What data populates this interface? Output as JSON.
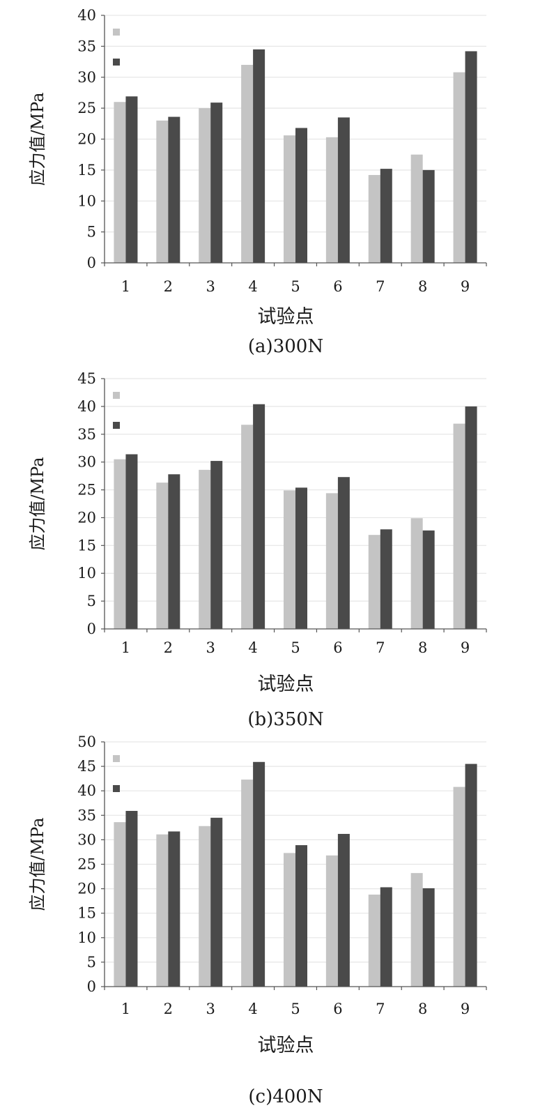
{
  "colors": {
    "series_light": "#c4c4c4",
    "series_dark": "#4a4a4a",
    "axis": "#555555",
    "grid": "#e6e6e6"
  },
  "chart_data": [
    {
      "type": "bar",
      "caption": "(a)300N",
      "xlabel": "试验点",
      "ylabel": "应力值/MPa",
      "categories": [
        "1",
        "2",
        "3",
        "4",
        "5",
        "6",
        "7",
        "8",
        "9"
      ],
      "ylim": [
        0,
        40
      ],
      "yticks": [
        0,
        5,
        10,
        15,
        20,
        25,
        30,
        35,
        40
      ],
      "legend": "top-left",
      "grid": true,
      "series": [
        {
          "values": [
            26,
            23,
            25,
            32,
            20.6,
            20.3,
            14.2,
            17.5,
            30.8
          ]
        },
        {
          "values": [
            26.9,
            23.6,
            25.9,
            34.5,
            21.8,
            23.5,
            15.2,
            15,
            34.2
          ]
        }
      ]
    },
    {
      "type": "bar",
      "caption": "(b)350N",
      "xlabel": "试验点",
      "ylabel": "应力值/MPa",
      "categories": [
        "1",
        "2",
        "3",
        "4",
        "5",
        "6",
        "7",
        "8",
        "9"
      ],
      "ylim": [
        0,
        45
      ],
      "yticks": [
        0,
        5,
        10,
        15,
        20,
        25,
        30,
        35,
        40,
        45
      ],
      "legend": "top-left",
      "grid": true,
      "series": [
        {
          "values": [
            30.5,
            26.3,
            28.6,
            36.7,
            24.9,
            24.4,
            16.9,
            19.9,
            36.9
          ]
        },
        {
          "values": [
            31.4,
            27.8,
            30.2,
            40.4,
            25.4,
            27.3,
            17.9,
            17.7,
            40
          ]
        }
      ]
    },
    {
      "type": "bar",
      "caption": "(c)400N",
      "xlabel": "试验点",
      "ylabel": "应力值/MPa",
      "categories": [
        "1",
        "2",
        "3",
        "4",
        "5",
        "6",
        "7",
        "8",
        "9"
      ],
      "ylim": [
        0,
        50
      ],
      "yticks": [
        0,
        5,
        10,
        15,
        20,
        25,
        30,
        35,
        40,
        45,
        50
      ],
      "legend": "top-left",
      "grid": true,
      "series": [
        {
          "values": [
            33.6,
            31.1,
            32.8,
            42.3,
            27.3,
            26.8,
            18.8,
            23.2,
            40.8
          ]
        },
        {
          "values": [
            35.9,
            31.7,
            34.5,
            45.9,
            28.9,
            31.2,
            20.3,
            20.1,
            45.5
          ]
        }
      ]
    }
  ]
}
